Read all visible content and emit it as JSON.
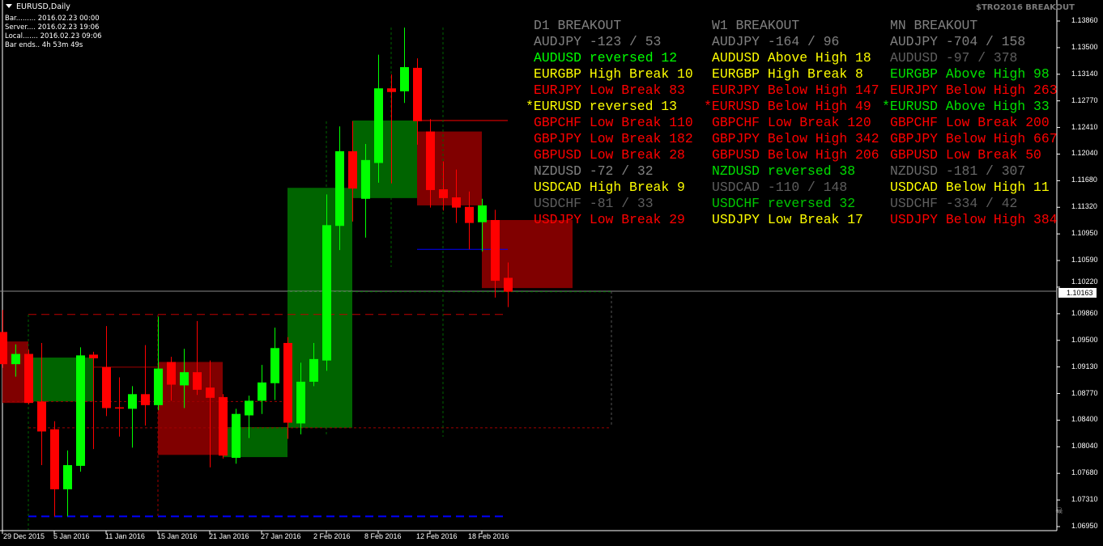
{
  "window": {
    "title": "EURUSD,Daily",
    "info_lines": [
      "Bar......... 2016.02.23 00:00",
      "Server.... 2016.02.23 19:06",
      "Local....... 2016.02.23 09:06",
      "Bar ends.. 4h 53m 49s"
    ],
    "brand": "$TRO2016 BREAKOUT"
  },
  "colors": {
    "bull": "#00ff00",
    "bear": "#ff0000",
    "bull_zone": "#006400",
    "bear_zone": "#800000",
    "background": "#000000",
    "grey": "#808080",
    "dim": "#5e5e5e",
    "yellow": "#ffff00",
    "green": "#00ff00",
    "red": "#ff0000"
  },
  "breakout_table": {
    "columns": [
      {
        "header": "D1 BREAKOUT",
        "rows": [
          {
            "text": "AUDJPY -123 / 53",
            "color": "#808080"
          },
          {
            "text": "AUDUSD reversed 12",
            "color": "#00ff00"
          },
          {
            "text": "EURGBP High Break 10",
            "color": "#ffff00"
          },
          {
            "text": "EURJPY Low Break 83",
            "color": "#ff0000"
          },
          {
            "text": "*EURUSD reversed 13",
            "color": "#ffff00"
          },
          {
            "text": "GBPCHF Low Break 110",
            "color": "#ff0000"
          },
          {
            "text": "GBPJPY Low Break 182",
            "color": "#ff0000"
          },
          {
            "text": "GBPUSD Low Break 28",
            "color": "#ff0000"
          },
          {
            "text": "NZDUSD -72 / 32",
            "color": "#808080"
          },
          {
            "text": "USDCAD High Break 9",
            "color": "#ffff00"
          },
          {
            "text": "USDCHF -81 / 33",
            "color": "#5e5e5e"
          },
          {
            "text": "USDJPY Low Break 29",
            "color": "#ff0000"
          }
        ]
      },
      {
        "header": "W1 BREAKOUT",
        "rows": [
          {
            "text": "AUDJPY -164 / 96",
            "color": "#808080"
          },
          {
            "text": "AUDUSD Above High 18",
            "color": "#ffff00"
          },
          {
            "text": "EURGBP High Break 8",
            "color": "#ffff00"
          },
          {
            "text": "EURJPY Below High 147",
            "color": "#ff0000"
          },
          {
            "text": "*EURUSD Below High 49",
            "color": "#ff0000"
          },
          {
            "text": "GBPCHF Low Break 120",
            "color": "#ff0000"
          },
          {
            "text": "GBPJPY Below High 342",
            "color": "#ff0000"
          },
          {
            "text": "GBPUSD Below High 206",
            "color": "#ff0000"
          },
          {
            "text": "NZDUSD reversed 38",
            "color": "#00e000"
          },
          {
            "text": "USDCAD -110 / 148",
            "color": "#5e5e5e"
          },
          {
            "text": "USDCHF reversed 32",
            "color": "#00c800"
          },
          {
            "text": "USDJPY Low Break 17",
            "color": "#ffff00"
          }
        ]
      },
      {
        "header": "MN BREAKOUT",
        "rows": [
          {
            "text": "AUDJPY -704 / 158",
            "color": "#808080"
          },
          {
            "text": "AUDUSD -97 / 378",
            "color": "#5e5e5e"
          },
          {
            "text": "EURGBP Above High 98",
            "color": "#00e000"
          },
          {
            "text": "EURJPY Below High 263",
            "color": "#ff0000"
          },
          {
            "text": "*EURUSD Above High 33",
            "color": "#00e000"
          },
          {
            "text": "GBPCHF Low Break 200",
            "color": "#ff0000"
          },
          {
            "text": "GBPJPY Below High 667",
            "color": "#ff0000"
          },
          {
            "text": "GBPUSD Low Break 50",
            "color": "#ff0000"
          },
          {
            "text": "NZDUSD -181 / 307",
            "color": "#6a6a6a"
          },
          {
            "text": "USDCAD Below High 11",
            "color": "#ffff00"
          },
          {
            "text": "USDCHF -334 / 42",
            "color": "#5e5e5e"
          },
          {
            "text": "USDJPY Below High 384",
            "color": "#ff0000"
          }
        ]
      }
    ]
  },
  "chart_data": {
    "type": "candlestick",
    "symbol": "EURUSD",
    "timeframe": "Daily",
    "ylim": [
      1.0695,
      1.1386
    ],
    "price_ticks": [
      "1.13860",
      "1.13500",
      "1.13140",
      "1.12770",
      "1.12410",
      "1.12040",
      "1.11680",
      "1.11320",
      "1.10950",
      "1.10590",
      "1.10220",
      "1.09860",
      "1.09500",
      "1.09130",
      "1.08770",
      "1.08400",
      "1.08040",
      "1.07680",
      "1.07310",
      "1.06950"
    ],
    "current_price": "1.10163",
    "time_labels": [
      "29 Dec 2015",
      "5 Jan 2016",
      "11 Jan 2016",
      "15 Jan 2016",
      "21 Jan 2016",
      "27 Jan 2016",
      "2 Feb 2016",
      "8 Feb 2016",
      "12 Feb 2016",
      "18 Feb 2016"
    ],
    "candles": [
      [
        1.0961,
        1.0991,
        1.0912,
        1.0917
      ],
      [
        1.0917,
        1.0944,
        1.09,
        1.0931
      ],
      [
        1.0931,
        1.0937,
        1.0862,
        1.0864
      ],
      [
        1.0866,
        1.0946,
        1.0779,
        1.0825
      ],
      [
        1.0828,
        1.0839,
        1.0709,
        1.0746
      ],
      [
        1.0746,
        1.0799,
        1.0709,
        1.0779
      ],
      [
        1.0778,
        1.094,
        1.077,
        1.0929
      ],
      [
        1.093,
        1.0934,
        1.0801,
        1.0925
      ],
      [
        1.0913,
        1.0969,
        1.0846,
        1.0857
      ],
      [
        1.0858,
        1.0899,
        1.0818,
        1.0857
      ],
      [
        1.0856,
        1.0887,
        1.0803,
        1.0876
      ],
      [
        1.0876,
        1.0943,
        1.0833,
        1.0861
      ],
      [
        1.0861,
        1.0982,
        1.0854,
        1.0911
      ],
      [
        1.092,
        1.0927,
        1.0867,
        1.0889
      ],
      [
        1.0888,
        1.0938,
        1.0857,
        1.0906
      ],
      [
        1.0906,
        1.0976,
        1.0875,
        1.0882
      ],
      [
        1.0885,
        1.0922,
        1.0776,
        1.0871
      ],
      [
        1.0872,
        1.0876,
        1.0788,
        1.0792
      ],
      [
        1.0789,
        1.0856,
        1.0781,
        1.0849
      ],
      [
        1.0847,
        1.0874,
        1.0816,
        1.0867
      ],
      [
        1.0867,
        1.0916,
        1.0849,
        1.0892
      ],
      [
        1.0891,
        1.0967,
        1.0868,
        1.0939
      ],
      [
        1.0946,
        1.0954,
        1.0815,
        1.0837
      ],
      [
        1.0836,
        1.0919,
        1.0821,
        1.0893
      ],
      [
        1.0893,
        1.0946,
        1.0887,
        1.0924
      ],
      [
        1.0922,
        1.1149,
        1.0908,
        1.1107
      ],
      [
        1.1106,
        1.1242,
        1.1073,
        1.1208
      ],
      [
        1.1208,
        1.1249,
        1.1112,
        1.1157
      ],
      [
        1.1143,
        1.1218,
        1.109,
        1.1196
      ],
      [
        1.1192,
        1.134,
        1.1165,
        1.1294
      ],
      [
        1.1294,
        1.1313,
        1.1164,
        1.1289
      ],
      [
        1.129,
        1.1377,
        1.1274,
        1.1323
      ],
      [
        1.1322,
        1.1335,
        1.1217,
        1.1249
      ],
      [
        1.1235,
        1.1252,
        1.1131,
        1.1155
      ],
      [
        1.1156,
        1.1194,
        1.1127,
        1.1144
      ],
      [
        1.1145,
        1.1183,
        1.111,
        1.1131
      ],
      [
        1.1132,
        1.1153,
        1.1074,
        1.111
      ],
      [
        1.1111,
        1.1143,
        1.1071,
        1.1134
      ],
      [
        1.1114,
        1.1128,
        1.1008,
        1.1031
      ],
      [
        1.1035,
        1.1056,
        1.0995,
        1.1016
      ]
    ],
    "candle_fields": [
      "open",
      "high",
      "low",
      "close"
    ],
    "zones": [
      {
        "from": 0,
        "to": 2,
        "top": 1.0948,
        "bottom": 1.0864,
        "kind": "bear"
      },
      {
        "from": 2,
        "to": 7,
        "top": 1.0926,
        "bottom": 1.0866,
        "kind": "bull"
      },
      {
        "from": 12,
        "to": 17,
        "top": 1.092,
        "bottom": 1.0793,
        "kind": "bear"
      },
      {
        "from": 17,
        "to": 22,
        "top": 1.0831,
        "bottom": 1.079,
        "kind": "bull"
      },
      {
        "from": 22,
        "to": 27,
        "top": 1.1158,
        "bottom": 1.083,
        "kind": "bull"
      },
      {
        "from": 27,
        "to": 32,
        "top": 1.125,
        "bottom": 1.1144,
        "kind": "bull"
      },
      {
        "from": 32,
        "to": 37,
        "top": 1.1235,
        "bottom": 1.1134,
        "kind": "bear"
      },
      {
        "from": 37,
        "to": 44,
        "top": 1.1114,
        "bottom": 1.1021,
        "kind": "bear"
      }
    ],
    "levels": [
      {
        "price": 1.0985,
        "from": 2,
        "to": 39,
        "color": "#c00000",
        "style": "dashed"
      },
      {
        "price": 1.0709,
        "from": 2,
        "to": 39,
        "color": "#0000ff",
        "style": "dashed"
      },
      {
        "price": 1.083,
        "from": 2,
        "to": 47,
        "color": "#a00000",
        "style": "dotted"
      },
      {
        "price": 1.0866,
        "from": 0,
        "to": 22,
        "color": "#a00000",
        "style": "dotted"
      },
      {
        "price": 1.1016,
        "from": 22,
        "to": 47,
        "color": "#008000",
        "style": "dotted"
      },
      {
        "price": 1.125,
        "from": 32,
        "to": 39,
        "color": "#ff0000",
        "style": "solid"
      },
      {
        "price": 1.1074,
        "from": 32,
        "to": 39,
        "color": "#0000ff",
        "style": "solid"
      },
      {
        "price": 1.0913,
        "from": 7,
        "to": 12,
        "color": "#a00000",
        "style": "solid"
      }
    ]
  }
}
